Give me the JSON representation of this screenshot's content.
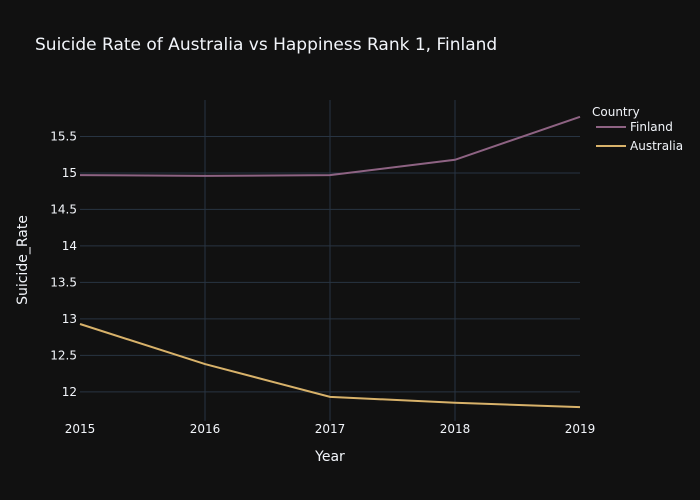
{
  "chart_data": {
    "type": "line",
    "title": "Suicide Rate of Australia vs Happiness Rank 1, Finland",
    "xlabel": "Year",
    "ylabel": "Suicide_Rate",
    "x": [
      2015,
      2016,
      2017,
      2018,
      2019
    ],
    "xlim": [
      2015,
      2019
    ],
    "ylim": [
      11.6,
      16.0
    ],
    "y_ticks": [
      12,
      12.5,
      13,
      13.5,
      14,
      14.5,
      15,
      15.5
    ],
    "y_tick_labels": [
      "12",
      "12.5",
      "13",
      "13.5",
      "14",
      "14.5",
      "15",
      "15.5"
    ],
    "grid": true,
    "legend": {
      "title": "Country",
      "placement": "top-right outside"
    },
    "series": [
      {
        "name": "Finland",
        "color": "#8e6383",
        "values": [
          14.97,
          14.96,
          14.97,
          15.18,
          15.77
        ]
      },
      {
        "name": "Australia",
        "color": "#d8b26a",
        "values": [
          12.93,
          12.38,
          11.93,
          11.85,
          11.79
        ]
      }
    ]
  }
}
